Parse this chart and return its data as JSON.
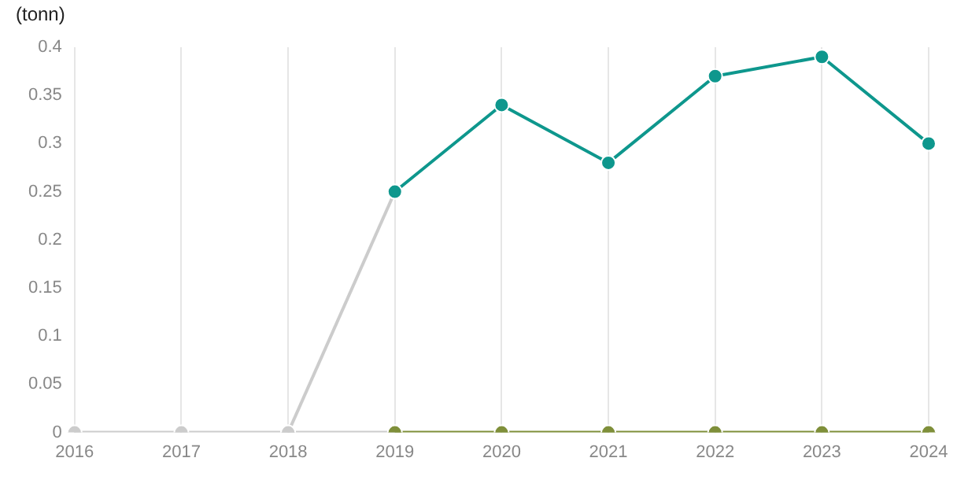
{
  "chart_data": {
    "type": "line",
    "ylabel": "(tonn)",
    "categories": [
      "2016",
      "2017",
      "2018",
      "2019",
      "2020",
      "2021",
      "2022",
      "2023",
      "2024"
    ],
    "series": [
      {
        "color": "#cccccc",
        "values": [
          0,
          0,
          0,
          0,
          null,
          null,
          null,
          null,
          null
        ]
      },
      {
        "color": "#cccccc",
        "values": [
          null,
          null,
          0,
          0.25,
          null,
          null,
          null,
          null,
          null
        ]
      },
      {
        "color": "#7f8f3a",
        "values": [
          null,
          null,
          null,
          0,
          0,
          0,
          0,
          0,
          0
        ]
      },
      {
        "color": "#0e978d",
        "values": [
          null,
          null,
          null,
          0.25,
          0.34,
          0.28,
          0.37,
          0.39,
          0.3
        ]
      }
    ],
    "ylim": [
      0,
      0.4
    ],
    "yticks": [
      0,
      0.05,
      0.1,
      0.15,
      0.2,
      0.25,
      0.3,
      0.35,
      0.4
    ],
    "grid": "x",
    "marker": "circle",
    "legend": false
  }
}
